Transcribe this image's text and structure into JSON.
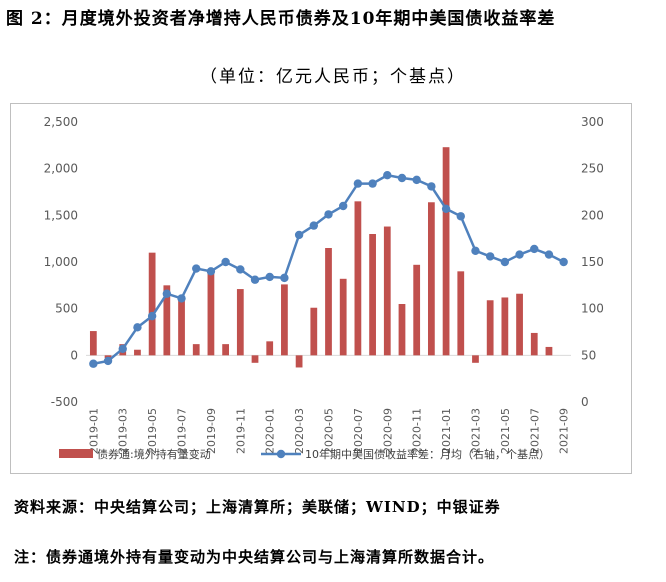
{
  "title": "图 2：月度境外投资者净增持人民币债券及10年期中美国债收益率差",
  "subtitle": "（单位：亿元人民币；个基点）",
  "source": "资料来源：中央结算公司；上海清算所；美联储；WIND；中银证券",
  "note": "注：债券通境外持有量变动为中央结算公司与上海清算所数据合计。",
  "chart_data": {
    "type": "bar+line",
    "x": [
      "2019-01",
      "2019-02",
      "2019-03",
      "2019-04",
      "2019-05",
      "2019-06",
      "2019-07",
      "2019-08",
      "2019-09",
      "2019-10",
      "2019-11",
      "2019-12",
      "2020-01",
      "2020-02",
      "2020-03",
      "2020-04",
      "2020-05",
      "2020-06",
      "2020-07",
      "2020-08",
      "2020-09",
      "2020-10",
      "2020-11",
      "2020-12",
      "2021-01",
      "2021-02",
      "2021-03",
      "2021-04",
      "2021-05",
      "2021-06",
      "2021-07",
      "2021-08",
      "2021-09"
    ],
    "x_tick_labels": [
      "2019-01",
      "2019-03",
      "2019-05",
      "2019-07",
      "2019-09",
      "2019-11",
      "2020-01",
      "2020-03",
      "2020-05",
      "2020-07",
      "2020-09",
      "2020-11",
      "2021-01",
      "2021-03",
      "2021-05",
      "2021-07",
      "2021-09"
    ],
    "left_axis": {
      "ylim": [
        -500,
        2500
      ],
      "ticks": [
        -500,
        0,
        500,
        1000,
        1500,
        2000,
        2500
      ],
      "tick_labels": [
        "-500",
        "0",
        "500",
        "1,000",
        "1,500",
        "2,000",
        "2,500"
      ]
    },
    "right_axis": {
      "ylim": [
        0,
        300
      ],
      "ticks": [
        0,
        50,
        100,
        150,
        200,
        250,
        300
      ],
      "tick_labels": [
        "0",
        "50",
        "100",
        "150",
        "200",
        "250",
        "300"
      ]
    },
    "series": [
      {
        "name": "债券通:境外持有量变动",
        "type": "bar",
        "axis": "left",
        "color": "#c0504d",
        "values": [
          260,
          -30,
          120,
          60,
          1100,
          750,
          630,
          120,
          920,
          120,
          710,
          -80,
          150,
          760,
          -130,
          510,
          1150,
          820,
          1650,
          1300,
          1380,
          550,
          970,
          1640,
          2230,
          900,
          -80,
          590,
          620,
          660,
          240,
          90,
          0
        ]
      },
      {
        "name": "10年期中美国债收益率差：月均（右轴，个基点）",
        "type": "line",
        "axis": "right",
        "color": "#4f81bd",
        "values": [
          41,
          44,
          57,
          80,
          92,
          116,
          111,
          143,
          140,
          150,
          142,
          131,
          134,
          133,
          179,
          189,
          201,
          210,
          234,
          234,
          243,
          240,
          238,
          231,
          207,
          199,
          162,
          156,
          150,
          158,
          164,
          158,
          150
        ]
      }
    ],
    "grid": false,
    "legend": "bottom"
  }
}
